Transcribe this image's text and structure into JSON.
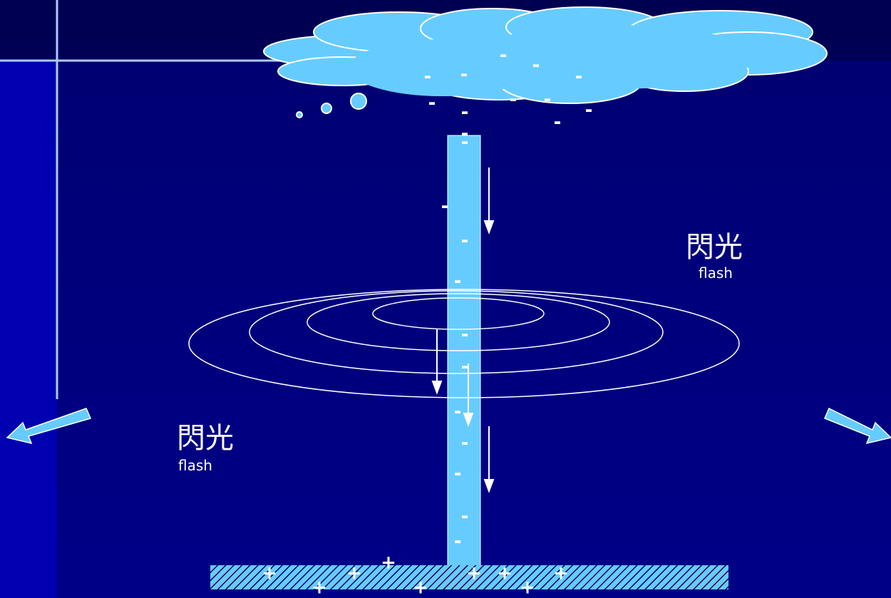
{
  "labels": [
    {
      "text": "閃光",
      "subtext": "flash"
    },
    {
      "text": "閃光",
      "subtext": "flash"
    }
  ],
  "cloud_charges": [
    "-",
    "-",
    "-",
    "-",
    "-",
    "-",
    "-",
    "-",
    "-",
    "-",
    "-",
    "-"
  ],
  "channel_charges": [
    "-",
    "-",
    "-",
    "-",
    "-",
    "-",
    "-",
    "-",
    "-",
    "-",
    "-"
  ],
  "ground_charges": [
    "+",
    "+",
    "+",
    "+",
    "+",
    "+",
    "+",
    "+",
    "+"
  ]
}
